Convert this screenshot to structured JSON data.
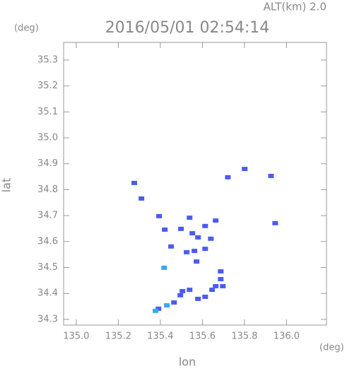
{
  "chart_data": {
    "type": "scatter",
    "title": "2016/05/01 02:54:14",
    "subtitle": "ALT(km) 2.0",
    "y_unit": "(deg)",
    "x_unit": "(deg)",
    "xlabel": "lon",
    "ylabel": "lat",
    "xlim": [
      134.94,
      136.19
    ],
    "ylim": [
      34.278,
      35.368
    ],
    "xticks": [
      {
        "value": 135.0,
        "label": "135.0"
      },
      135.2,
      135.4,
      135.6,
      135.8,
      {
        "value": 136.0,
        "label": "136.0"
      }
    ],
    "yticks": [
      34.3,
      34.4,
      34.5,
      34.6,
      34.7,
      34.8,
      34.9,
      {
        "value": 35.0,
        "label": "35.0"
      },
      35.1,
      35.2,
      35.3
    ],
    "grid": false,
    "series": [
      {
        "color": "#4a5cf0",
        "x": [
          135.276,
          135.31,
          135.394,
          135.421,
          135.451,
          135.498,
          135.539,
          135.552,
          135.579,
          135.613,
          135.663,
          135.64,
          135.562,
          135.613,
          135.572,
          135.525,
          135.801,
          135.926,
          135.946,
          135.721,
          135.687,
          135.687,
          135.663,
          135.697,
          135.646,
          135.613,
          135.579,
          135.539,
          135.495,
          135.465,
          135.391,
          135.505
        ],
        "y": [
          34.826,
          34.766,
          34.698,
          34.646,
          34.581,
          34.649,
          34.692,
          34.632,
          34.616,
          34.66,
          34.681,
          34.611,
          34.564,
          34.572,
          34.523,
          34.559,
          34.88,
          34.853,
          34.671,
          34.848,
          34.485,
          34.455,
          34.428,
          34.428,
          34.414,
          34.387,
          34.379,
          34.414,
          34.393,
          34.365,
          34.341,
          34.409
        ]
      },
      {
        "color": "#3aa8ee",
        "x": [
          135.418,
          135.431,
          135.377
        ],
        "y": [
          34.499,
          34.354,
          34.333
        ]
      }
    ]
  }
}
